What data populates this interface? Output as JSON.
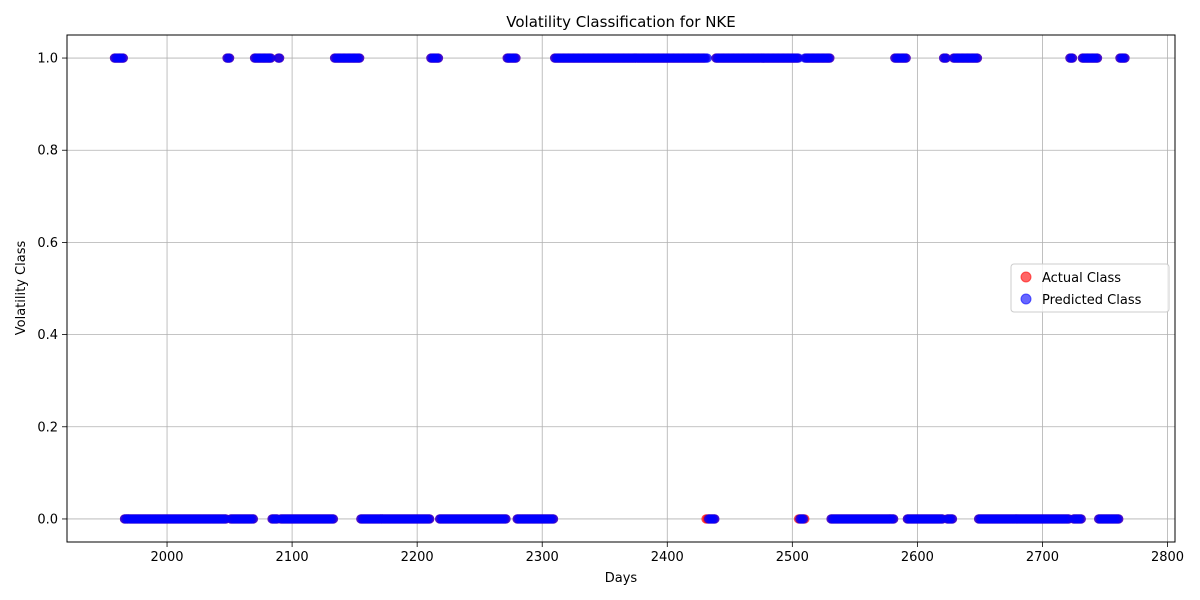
{
  "chart_data": {
    "type": "scatter",
    "title": "Volatility Classification for NKE",
    "xlabel": "Days",
    "ylabel": "Volatility Class",
    "xlim": [
      1920,
      2806
    ],
    "ylim": [
      -0.05,
      1.05
    ],
    "xticks": [
      2000,
      2100,
      2200,
      2300,
      2400,
      2500,
      2600,
      2700,
      2800
    ],
    "xtick_labels": [
      "2000",
      "2100",
      "2200",
      "2300",
      "2400",
      "2500",
      "2600",
      "2700",
      "2800"
    ],
    "yticks": [
      0.0,
      0.2,
      0.4,
      0.6,
      0.8,
      1.0
    ],
    "ytick_labels": [
      "0.0",
      "0.2",
      "0.4",
      "0.6",
      "0.8",
      "1.0"
    ],
    "grid": true,
    "legend_position": "center-right",
    "x_start": 1958,
    "x_end": 2766,
    "series": [
      {
        "name": "Actual Class",
        "color": "#ff0000",
        "alpha": 0.6,
        "runs": [
          [
            1958,
            1965,
            1
          ],
          [
            1966,
            2047,
            0
          ],
          [
            2048,
            2050,
            1
          ],
          [
            2051,
            2069,
            0
          ],
          [
            2070,
            2083,
            1
          ],
          [
            2084,
            2088,
            0
          ],
          [
            2089,
            2090,
            1
          ],
          [
            2091,
            2133,
            0
          ],
          [
            2134,
            2154,
            1
          ],
          [
            2155,
            2210,
            0
          ],
          [
            2211,
            2217,
            1
          ],
          [
            2218,
            2271,
            0
          ],
          [
            2272,
            2279,
            1
          ],
          [
            2280,
            2309,
            0
          ],
          [
            2310,
            2430,
            1
          ],
          [
            2431,
            2438,
            0
          ],
          [
            2439,
            2504,
            1
          ],
          [
            2505,
            2510,
            0
          ],
          [
            2511,
            2530,
            1
          ],
          [
            2531,
            2581,
            0
          ],
          [
            2582,
            2591,
            1
          ],
          [
            2592,
            2620,
            0
          ],
          [
            2621,
            2623,
            1
          ],
          [
            2624,
            2628,
            0
          ],
          [
            2629,
            2648,
            1
          ],
          [
            2649,
            2721,
            0
          ],
          [
            2722,
            2724,
            1
          ],
          [
            2725,
            2731,
            0
          ],
          [
            2732,
            2744,
            1
          ],
          [
            2745,
            2761,
            0
          ],
          [
            2762,
            2766,
            1
          ]
        ]
      },
      {
        "name": "Predicted Class",
        "color": "#0000ff",
        "alpha": 0.6,
        "runs": [
          [
            1958,
            1965,
            1
          ],
          [
            1966,
            2047,
            0
          ],
          [
            2048,
            2050,
            1
          ],
          [
            2051,
            2069,
            0
          ],
          [
            2070,
            2083,
            1
          ],
          [
            2084,
            2088,
            0
          ],
          [
            2089,
            2090,
            1
          ],
          [
            2091,
            2133,
            0
          ],
          [
            2134,
            2154,
            1
          ],
          [
            2155,
            2210,
            0
          ],
          [
            2211,
            2217,
            1
          ],
          [
            2218,
            2271,
            0
          ],
          [
            2272,
            2279,
            1
          ],
          [
            2280,
            2309,
            0
          ],
          [
            2310,
            2432,
            1
          ],
          [
            2433,
            2438,
            0
          ],
          [
            2439,
            2505,
            1
          ],
          [
            2506,
            2509,
            0
          ],
          [
            2510,
            2530,
            1
          ],
          [
            2531,
            2581,
            0
          ],
          [
            2582,
            2591,
            1
          ],
          [
            2592,
            2620,
            0
          ],
          [
            2621,
            2623,
            1
          ],
          [
            2624,
            2628,
            0
          ],
          [
            2629,
            2648,
            1
          ],
          [
            2649,
            2721,
            0
          ],
          [
            2722,
            2724,
            1
          ],
          [
            2725,
            2731,
            0
          ],
          [
            2732,
            2744,
            1
          ],
          [
            2745,
            2761,
            0
          ],
          [
            2762,
            2766,
            1
          ]
        ]
      }
    ]
  }
}
